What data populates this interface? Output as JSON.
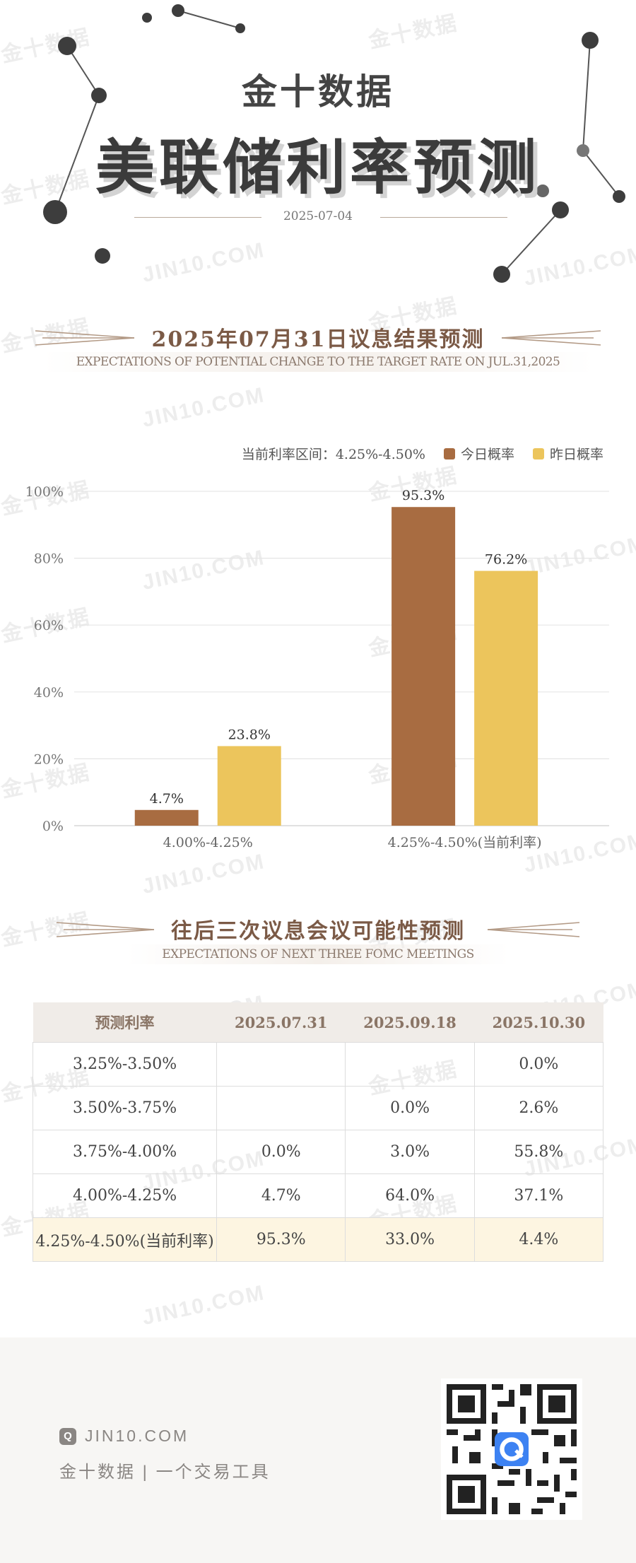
{
  "header": {
    "brand": "金十数据",
    "title": "美联储利率预测",
    "date": "2025-07-04"
  },
  "section1": {
    "title": "2025年07月31日议息结果预测",
    "subtitle": "EXPECTATIONS OF POTENTIAL CHANGE TO THE TARGET RATE ON JUL.31,2025"
  },
  "legend": {
    "current_rate": "当前利率区间：4.25%-4.50%",
    "today": "今日概率",
    "yesterday": "昨日概率"
  },
  "colors": {
    "today": "#a86c41",
    "yesterday": "#ecc55c"
  },
  "chart_data": {
    "type": "bar",
    "categories": [
      "4.00%-4.25%",
      "4.25%-4.50%(当前利率)"
    ],
    "series": [
      {
        "name": "今日概率",
        "values": [
          4.7,
          95.3
        ]
      },
      {
        "name": "昨日概率",
        "values": [
          23.8,
          76.2
        ]
      }
    ],
    "value_labels": [
      [
        "4.7%",
        "95.3%"
      ],
      [
        "23.8%",
        "76.2%"
      ]
    ],
    "y_ticks": [
      "0%",
      "20%",
      "40%",
      "60%",
      "80%",
      "100%"
    ],
    "ylim": [
      0,
      100
    ],
    "grid": true,
    "legend_position": "top-right"
  },
  "section2": {
    "title": "往后三次议息会议可能性预测",
    "subtitle": "EXPECTATIONS OF NEXT THREE FOMC MEETINGS"
  },
  "table": {
    "headers": [
      "预测利率",
      "2025.07.31",
      "2025.09.18",
      "2025.10.30"
    ],
    "rows": [
      [
        "3.25%-3.50%",
        "",
        "",
        "0.0%"
      ],
      [
        "3.50%-3.75%",
        "",
        "0.0%",
        "2.6%"
      ],
      [
        "3.75%-4.00%",
        "0.0%",
        "3.0%",
        "55.8%"
      ],
      [
        "4.00%-4.25%",
        "4.7%",
        "64.0%",
        "37.1%"
      ],
      [
        "4.25%-4.50%(当前利率)",
        "95.3%",
        "33.0%",
        "4.4%"
      ]
    ]
  },
  "footer": {
    "site": "JIN10.COM",
    "slogan": "金十数据 | 一个交易工具"
  },
  "watermark": {
    "cn": "金十数据",
    "en": "JIN10.COM"
  }
}
